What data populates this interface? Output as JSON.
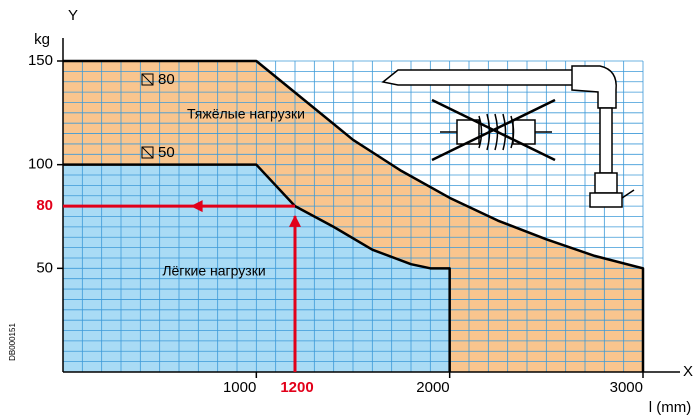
{
  "chart_data": {
    "type": "area",
    "y_label": "Y",
    "y_unit": "kg",
    "x_label": "X",
    "x_unit": "l (mm)",
    "code": "DB000151",
    "xlim": [
      0,
      3000
    ],
    "ylim": [
      0,
      150
    ],
    "xticks": [
      1000,
      2000,
      3000
    ],
    "yticks": [
      50,
      100,
      150
    ],
    "grid": true,
    "series": [
      {
        "name": "Тяжёлые нагрузки",
        "color": "#f9c58e",
        "x": [
          0,
          1000,
          1250,
          1500,
          1750,
          2000,
          2250,
          2500,
          2750,
          3000
        ],
        "values": [
          150,
          150,
          131,
          112,
          97,
          84,
          73,
          64,
          56,
          50
        ]
      },
      {
        "name": "Лёгкие нагрузки",
        "color": "#a9dbf5",
        "x": [
          0,
          1000,
          1200,
          1400,
          1600,
          1800,
          1900,
          2000
        ],
        "values": [
          100,
          100,
          80,
          70,
          59,
          52,
          50,
          50
        ]
      }
    ],
    "annotations": [
      "80",
      "50"
    ],
    "highlight": {
      "x": 1200,
      "y": 80,
      "color": "#e2001a"
    }
  }
}
